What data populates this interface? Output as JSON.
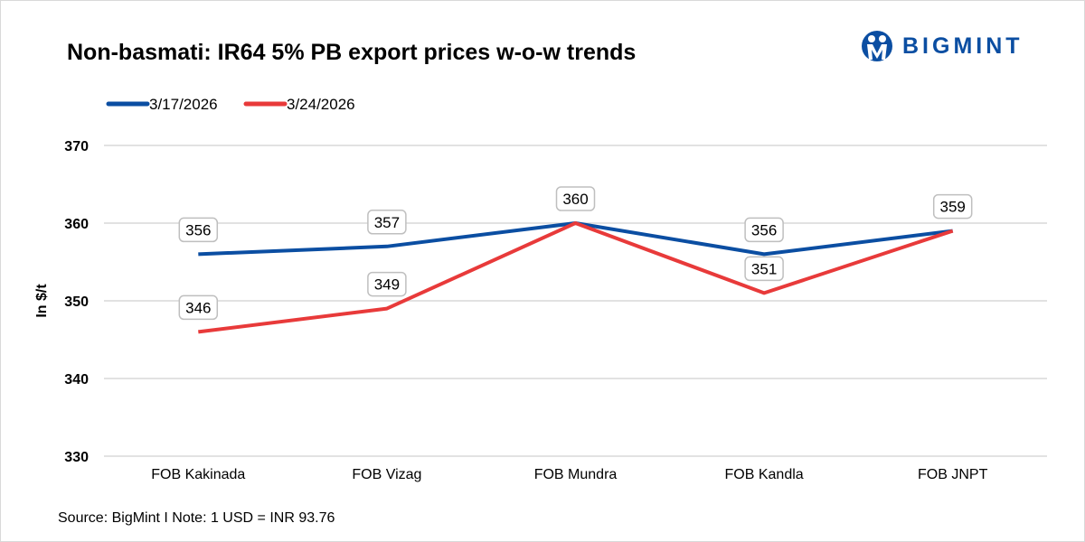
{
  "title": "Non-basmati: IR64 5% PB export prices w-o-w trends",
  "logo": {
    "text": "BIGMINT",
    "color": "#0b4ea2"
  },
  "source": "Source: BigMint I Note: 1 USD = INR 93.76",
  "chart_data": {
    "type": "line",
    "title": "Non-basmati: IR64 5% PB export prices w-o-w trends",
    "xlabel": "",
    "ylabel": "In $/t",
    "ylim": [
      330,
      370
    ],
    "yticks": [
      330,
      340,
      350,
      360,
      370
    ],
    "grid": true,
    "legend": "top-left",
    "categories": [
      "FOB Kakinada",
      "FOB Vizag",
      "FOB Mundra",
      "FOB Kandla",
      "FOB JNPT"
    ],
    "series": [
      {
        "name": "3/17/2026",
        "color": "#0b4ea2",
        "values": [
          356,
          357,
          360,
          356,
          359
        ]
      },
      {
        "name": "3/24/2026",
        "color": "#e83a3a",
        "values": [
          346,
          349,
          360,
          351,
          359
        ]
      }
    ]
  }
}
